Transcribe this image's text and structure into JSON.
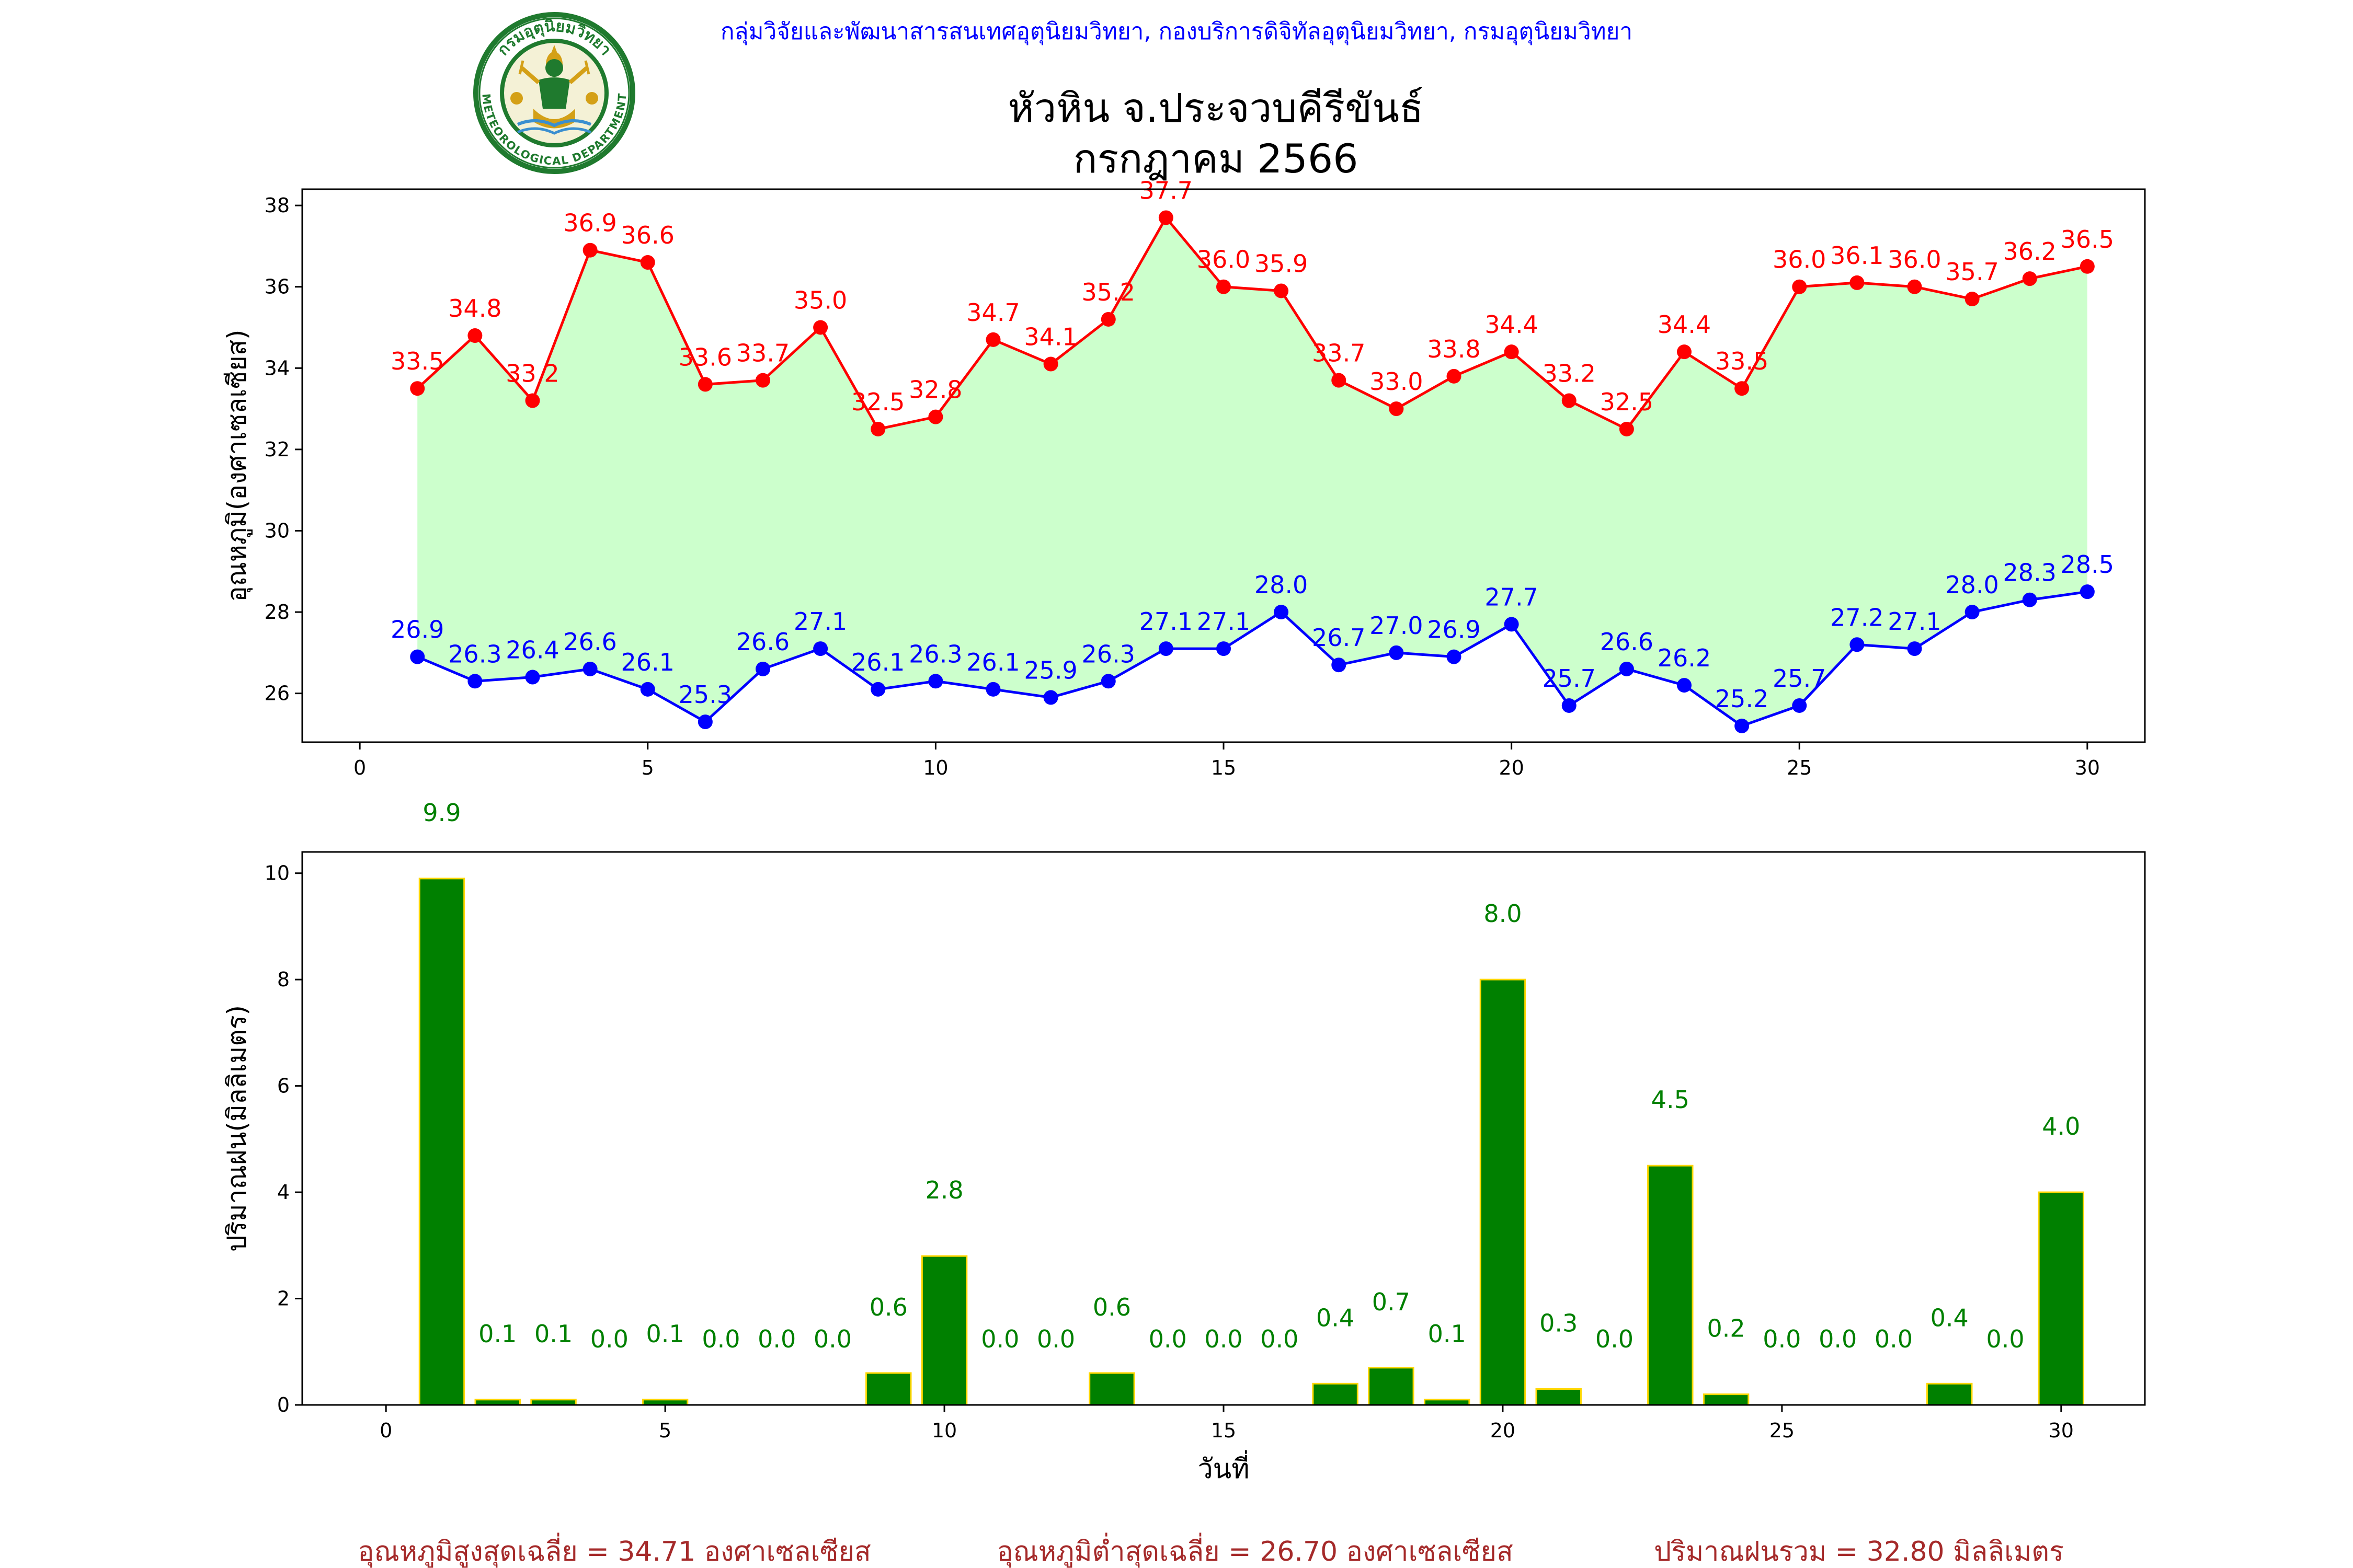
{
  "header": {
    "agency_line": "กลุ่มวิจัยและพัฒนาสารสนเทศอุตุนิยมวิทยา, กองบริการดิจิทัลอุตุนิยมวิทยา, กรมอุตุนิยมวิทยา",
    "title_line1": "หัวหิน จ.ประจวบคีรีขันธ์",
    "title_line2": "กรกฎาคม 2566"
  },
  "logo": {
    "ring_text_top": "กรมอุตุนิยมวิทยา",
    "ring_text_bottom": "METEOROLOGICAL DEPARTMENT",
    "green": "#1f7a2e",
    "gold": "#d4a017"
  },
  "colors": {
    "max_line": "#ff0000",
    "min_line": "#0000ff",
    "fill_between": "#ccffcc",
    "rain_bar": "#008000",
    "rain_bar_edge": "#ffd700",
    "rain_label": "#008000",
    "footer_text": "#a52a2a"
  },
  "chart_data": [
    {
      "type": "line",
      "ylabel": "อุณหภูมิ(องศาเซลเซียส)",
      "xlim": [
        -1,
        31
      ],
      "ylim": [
        24.8,
        38.4
      ],
      "xticks": [
        0,
        5,
        10,
        15,
        20,
        25,
        30
      ],
      "yticks": [
        26,
        28,
        30,
        32,
        34,
        36,
        38
      ],
      "x": [
        1,
        2,
        3,
        4,
        5,
        6,
        7,
        8,
        9,
        10,
        11,
        12,
        13,
        14,
        15,
        16,
        17,
        18,
        19,
        20,
        21,
        22,
        23,
        24,
        25,
        26,
        27,
        28,
        29,
        30
      ],
      "series": [
        {
          "key": "max",
          "values": [
            33.5,
            34.8,
            33.2,
            36.9,
            36.6,
            33.6,
            33.7,
            35.0,
            32.5,
            32.8,
            34.7,
            34.1,
            35.2,
            37.7,
            36.0,
            35.9,
            33.7,
            33.0,
            33.8,
            34.4,
            33.2,
            32.5,
            34.4,
            33.5,
            36.0,
            36.1,
            36.0,
            35.7,
            36.2,
            36.5
          ]
        },
        {
          "key": "min",
          "values": [
            26.9,
            26.3,
            26.4,
            26.6,
            26.1,
            25.3,
            26.6,
            27.1,
            26.1,
            26.3,
            26.1,
            25.9,
            26.3,
            27.1,
            27.1,
            28.0,
            26.7,
            27.0,
            26.9,
            27.7,
            25.7,
            26.6,
            26.2,
            25.2,
            25.7,
            27.2,
            27.1,
            28.0,
            28.3,
            28.5
          ]
        }
      ]
    },
    {
      "type": "bar",
      "ylabel": "ปริมาณฝน(มิลลิเมตร)",
      "xlabel": "วันที่",
      "xlim": [
        -1.5,
        31.5
      ],
      "ylim": [
        0,
        10.4
      ],
      "xticks": [
        0,
        5,
        10,
        15,
        20,
        25,
        30
      ],
      "yticks": [
        0,
        2,
        4,
        6,
        8,
        10
      ],
      "x": [
        1,
        2,
        3,
        4,
        5,
        6,
        7,
        8,
        9,
        10,
        11,
        12,
        13,
        14,
        15,
        16,
        17,
        18,
        19,
        20,
        21,
        22,
        23,
        24,
        25,
        26,
        27,
        28,
        29,
        30
      ],
      "values": [
        9.9,
        0.1,
        0.1,
        0.0,
        0.1,
        0.0,
        0.0,
        0.0,
        0.6,
        2.8,
        0.0,
        0.0,
        0.6,
        0.0,
        0.0,
        0.0,
        0.4,
        0.7,
        0.1,
        8.0,
        0.3,
        0.0,
        4.5,
        0.2,
        0.0,
        0.0,
        0.0,
        0.4,
        0.0,
        4.0
      ]
    }
  ],
  "footer": {
    "avg_max": "อุณหภูมิสูงสุดเฉลี่ย = 34.71 องศาเซลเซียส",
    "avg_min": "อุณหภูมิต่ำสุดเฉลี่ย = 26.70 องศาเซลเซียส",
    "total_rain": "ปริมาณฝนรวม = 32.80 มิลลิเมตร"
  }
}
